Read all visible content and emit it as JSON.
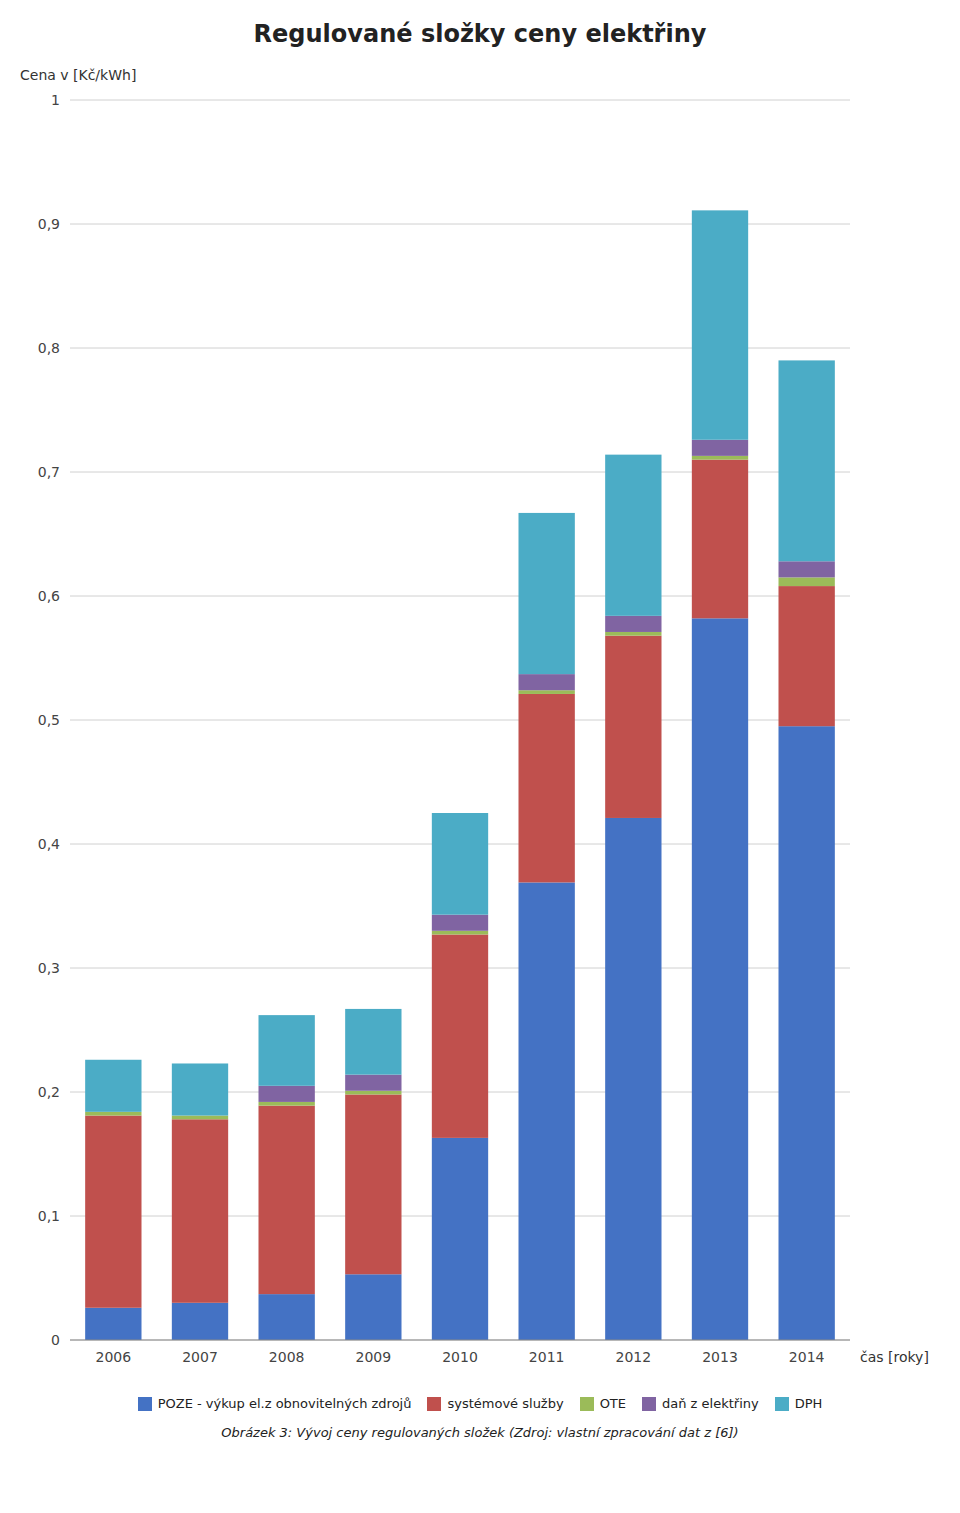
{
  "chart_data": {
    "type": "bar",
    "stacked": true,
    "title": "Regulované složky ceny elektřiny",
    "ylabel": "Cena v [Kč/kWh]",
    "xlabel": "čas [roky]",
    "caption": "Obrázek 3: Vývoj ceny regulovaných složek (Zdroj: vlastní zpracování dat z [6])",
    "categories": [
      "2006",
      "2007",
      "2008",
      "2009",
      "2010",
      "2011",
      "2012",
      "2013",
      "2014"
    ],
    "series": [
      {
        "name": "POZE - výkup el.z obnovitelných zdrojů",
        "color": "#4472C4",
        "values": [
          0.026,
          0.03,
          0.037,
          0.053,
          0.163,
          0.369,
          0.421,
          0.582,
          0.495
        ]
      },
      {
        "name": "systémové služby",
        "color": "#C0504D",
        "values": [
          0.155,
          0.148,
          0.152,
          0.145,
          0.164,
          0.152,
          0.147,
          0.128,
          0.113
        ]
      },
      {
        "name": "OTE",
        "color": "#9BBB59",
        "values": [
          0.003,
          0.003,
          0.003,
          0.003,
          0.003,
          0.003,
          0.003,
          0.003,
          0.007
        ]
      },
      {
        "name": "daň z elektřiny",
        "color": "#8064A2",
        "values": [
          0.0,
          0.0,
          0.013,
          0.013,
          0.013,
          0.013,
          0.013,
          0.013,
          0.013
        ]
      },
      {
        "name": "DPH",
        "color": "#4BACC6",
        "values": [
          0.042,
          0.042,
          0.057,
          0.053,
          0.082,
          0.13,
          0.13,
          0.185,
          0.162
        ]
      }
    ],
    "ylim": [
      0,
      1.0
    ],
    "yticks": [
      0,
      {
        "value": 0.1,
        "label": "0,1"
      },
      {
        "value": 0.2,
        "label": "0,2"
      },
      {
        "value": 0.3,
        "label": "0,3"
      },
      {
        "value": 0.4,
        "label": "0,4"
      },
      {
        "value": 0.5,
        "label": "0,5"
      },
      {
        "value": 0.6,
        "label": "0,6"
      },
      {
        "value": 0.7,
        "label": "0,7"
      },
      {
        "value": 0.8,
        "label": "0,8"
      },
      {
        "value": 0.9,
        "label": "0,9"
      },
      1
    ],
    "grid": true,
    "legend": "bottom"
  }
}
